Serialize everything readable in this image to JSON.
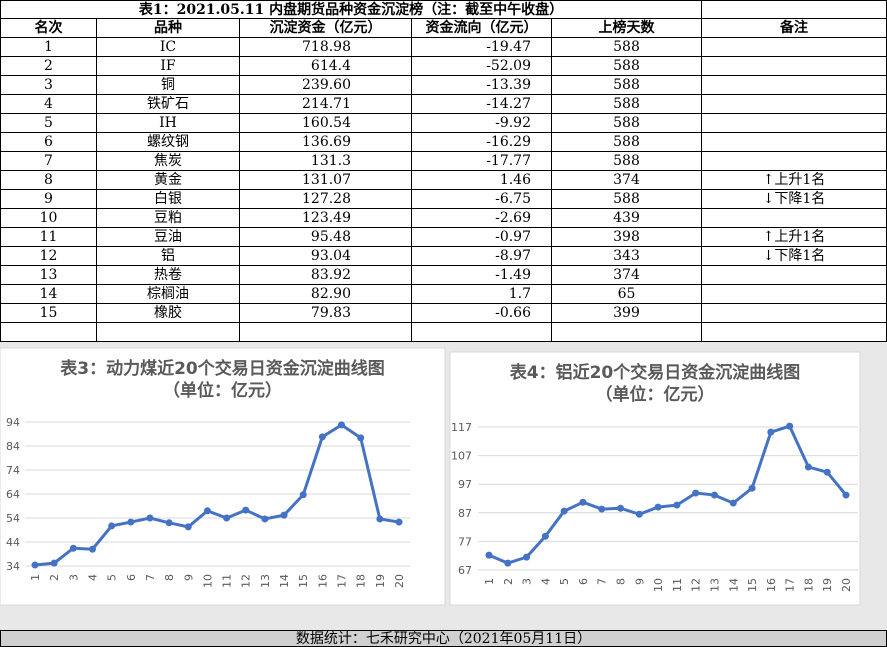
{
  "table": {
    "title": "表1：2021.05.11 内盘期货品种资金沉淀榜（注：截至中午收盘）",
    "headers": [
      "名次",
      "品种",
      "沉淀资金（亿元）",
      "资金流向（亿元）",
      "上榜天数",
      "备注"
    ],
    "rows": [
      [
        "1",
        "IC",
        "718.98",
        "-19.47",
        "588",
        ""
      ],
      [
        "2",
        "IF",
        "614.4",
        "-52.09",
        "588",
        ""
      ],
      [
        "3",
        "铜",
        "239.60",
        "-13.39",
        "588",
        ""
      ],
      [
        "4",
        "铁矿石",
        "214.71",
        "-14.27",
        "588",
        ""
      ],
      [
        "5",
        "IH",
        "160.54",
        "-9.92",
        "588",
        ""
      ],
      [
        "6",
        "螺纹钢",
        "136.69",
        "-16.29",
        "588",
        ""
      ],
      [
        "7",
        "焦炭",
        "131.3",
        "-17.77",
        "588",
        ""
      ],
      [
        "8",
        "黄金",
        "131.07",
        "1.46",
        "374",
        "↑上升1名"
      ],
      [
        "9",
        "白银",
        "127.28",
        "-6.75",
        "588",
        "↓下降1名"
      ],
      [
        "10",
        "豆粕",
        "123.49",
        "-2.69",
        "439",
        ""
      ],
      [
        "11",
        "豆油",
        "95.48",
        "-0.97",
        "398",
        "↑上升1名"
      ],
      [
        "12",
        "铝",
        "93.04",
        "-8.97",
        "343",
        "↓下降1名"
      ],
      [
        "13",
        "热卷",
        "83.92",
        "-1.49",
        "374",
        ""
      ],
      [
        "14",
        "棕榈油",
        "82.90",
        "1.7",
        "65",
        ""
      ],
      [
        "15",
        "橡胶",
        "79.83",
        "-0.66",
        "399",
        ""
      ]
    ]
  },
  "chart_data": [
    {
      "type": "line",
      "title": "表3：动力煤近20个交易日资金沉淀曲线图（单位：亿元）",
      "categories": [
        "1",
        "2",
        "3",
        "4",
        "5",
        "6",
        "7",
        "8",
        "9",
        "10",
        "11",
        "12",
        "13",
        "14",
        "15",
        "16",
        "17",
        "18",
        "19",
        "20"
      ],
      "values": [
        34.4,
        35.2,
        41.4,
        41,
        50.7,
        52.3,
        54,
        52,
        50.3,
        57,
        54,
        57.3,
        53.6,
        55.2,
        63.7,
        87.8,
        92.8,
        87.4,
        53.6,
        52.3
      ],
      "color": "#4472c4",
      "ylim": [
        34,
        94
      ],
      "yticks": [
        34,
        44,
        54,
        64,
        74,
        84,
        94
      ],
      "grid": true
    },
    {
      "type": "line",
      "title": "表4：铝近20个交易日资金沉淀曲线图（单位：亿元）",
      "categories": [
        "1",
        "2",
        "3",
        "4",
        "5",
        "6",
        "7",
        "8",
        "9",
        "10",
        "11",
        "12",
        "13",
        "14",
        "15",
        "16",
        "17",
        "18",
        "19",
        "20"
      ],
      "values": [
        72.2,
        69.4,
        71.5,
        78.8,
        87.6,
        90.7,
        88.3,
        88.6,
        86.5,
        89,
        89.7,
        93.9,
        93.2,
        90.4,
        95.6,
        115.2,
        117.3,
        103,
        101.2,
        93.2
      ],
      "color": "#4472c4",
      "ylim": [
        67,
        117
      ],
      "yticks": [
        67,
        77,
        87,
        97,
        107,
        117
      ],
      "grid": true
    }
  ],
  "footer": "数据统计：七禾研究中心（2021年05月11日）"
}
